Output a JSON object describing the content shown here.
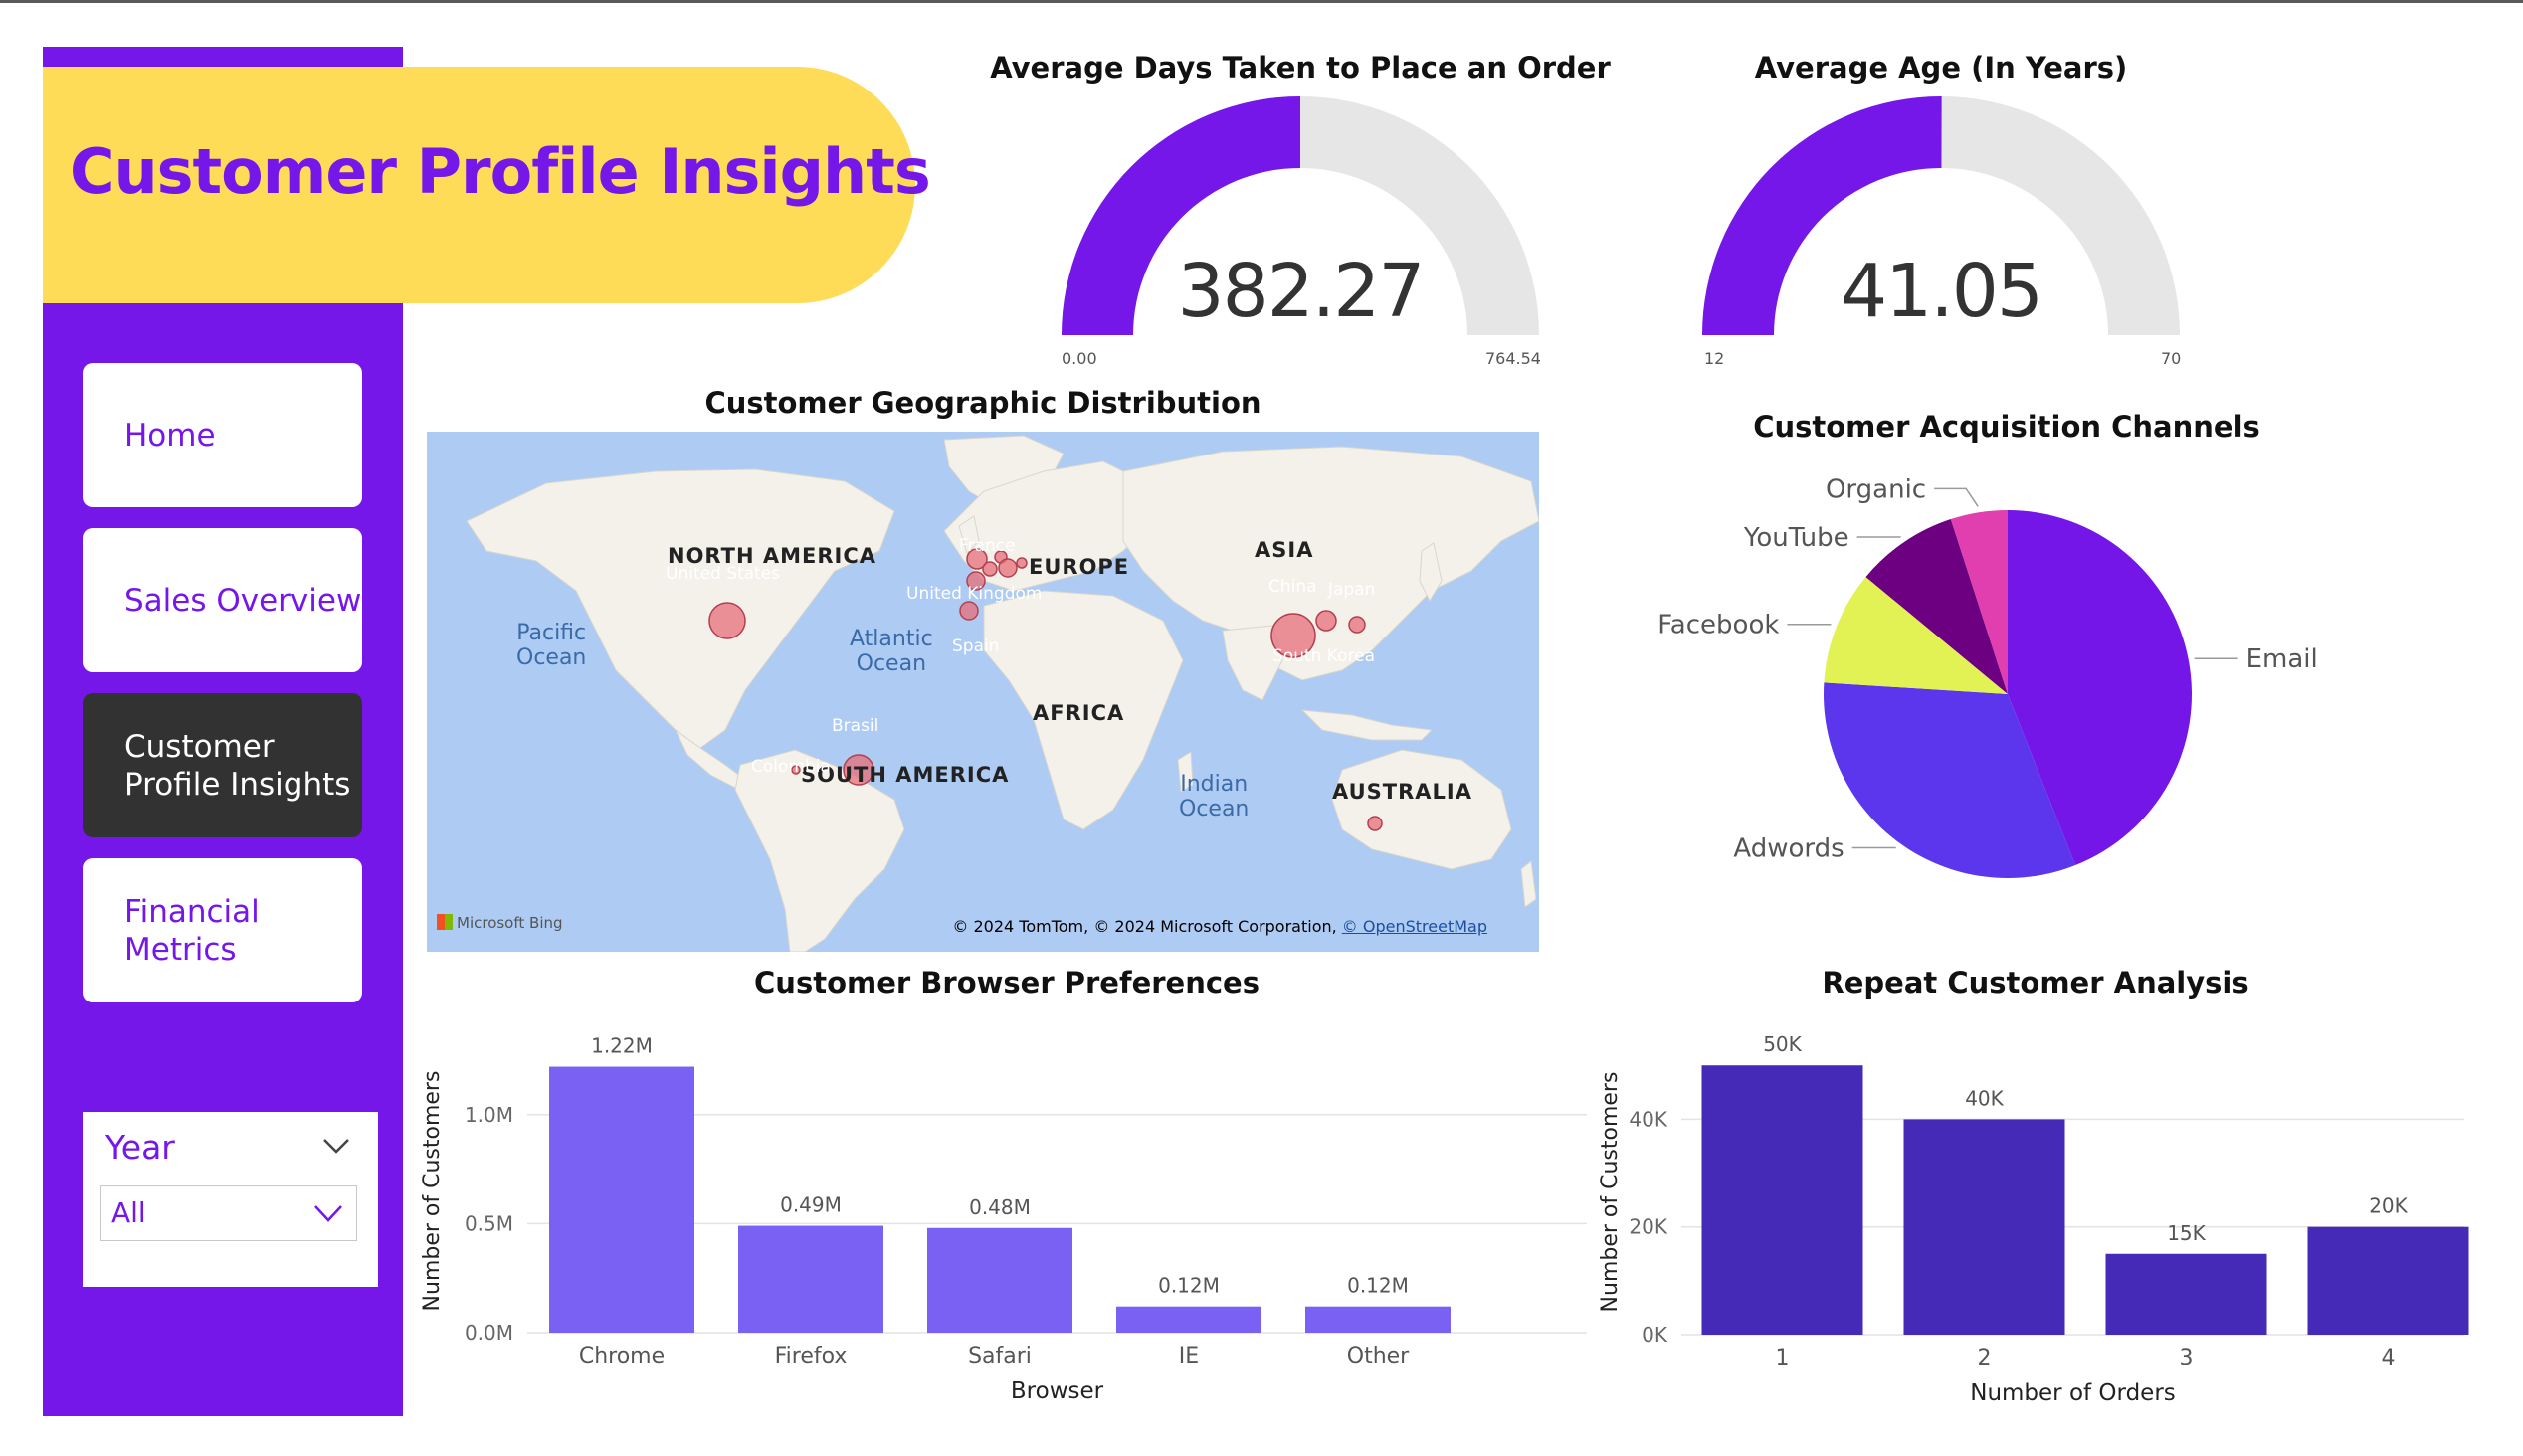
{
  "app": {
    "title": "Customer Profile Insights"
  },
  "nav": [
    {
      "label": "Home",
      "active": false
    },
    {
      "label": "Sales Overview",
      "active": false
    },
    {
      "label": "Customer\nProfile Insights",
      "active": true
    },
    {
      "label": "Financial\nMetrics",
      "active": false
    }
  ],
  "slicer": {
    "label": "Year",
    "selected": "All"
  },
  "gauges": [
    {
      "title": "Average Days Taken to Place an Order",
      "value": 382.27,
      "value_text": "382.27",
      "min": 0,
      "max": 764.54,
      "min_text": "0.00",
      "max_text": "764.54"
    },
    {
      "title": "Average Age (In Years)",
      "value": 41.05,
      "value_text": "41.05",
      "min": 12,
      "max": 70,
      "min_text": "12",
      "max_text": "70"
    }
  ],
  "map": {
    "title": "Customer Geographic Distribution",
    "continents": [
      "NORTH AMERICA",
      "EUROPE",
      "ASIA",
      "AFRICA",
      "SOUTH AMERICA",
      "AUSTRALIA"
    ],
    "oceans": [
      "Pacific\nOcean",
      "Atlantic\nOcean",
      "Indian\nOcean"
    ],
    "places": [
      "United States",
      "France",
      "United Kingdom",
      "Spain",
      "China",
      "Japan",
      "South Korea",
      "Brasil",
      "Colombia"
    ],
    "provider": "Microsoft Bing",
    "attribution": "© 2024 TomTom, © 2024 Microsoft Corporation, ",
    "attribution_link": "© OpenStreetMap"
  },
  "colors": {
    "accent": "#7517e9",
    "banner": "#fedc57",
    "nav_active": "#323232",
    "bar1": "#7b61f3",
    "bar2": "#4529b7",
    "gauge_track": "#e6e6e6"
  },
  "chart_data": [
    {
      "type": "pie",
      "title": "Customer Acquisition Channels",
      "categories": [
        "Email",
        "Adwords",
        "Facebook",
        "YouTube",
        "Organic"
      ],
      "values": [
        44,
        32,
        10,
        9,
        5
      ],
      "colors": [
        "#7516e8",
        "#5c36ec",
        "#e2f255",
        "#6d0080",
        "#e13fb0"
      ]
    },
    {
      "type": "bar",
      "title": "Customer Browser Preferences",
      "categories": [
        "Chrome",
        "Firefox",
        "Safari",
        "IE",
        "Other"
      ],
      "values": [
        1.22,
        0.49,
        0.48,
        0.12,
        0.12
      ],
      "data_labels": [
        "1.22M",
        "0.49M",
        "0.48M",
        "0.12M",
        "0.12M"
      ],
      "yticks": [
        0,
        0.5,
        1.0
      ],
      "ytick_labels": [
        "0.0M",
        "0.5M",
        "1.0M"
      ],
      "ylim": [
        0,
        1.3
      ],
      "xlabel": "Browser",
      "ylabel": "Number of Customers"
    },
    {
      "type": "bar",
      "title": "Repeat Customer Analysis",
      "categories": [
        "1",
        "2",
        "3",
        "4"
      ],
      "values": [
        50,
        40,
        15,
        20
      ],
      "data_labels": [
        "50K",
        "40K",
        "15K",
        "20K"
      ],
      "yticks": [
        0,
        20,
        40
      ],
      "ytick_labels": [
        "0K",
        "20K",
        "40K"
      ],
      "ylim": [
        0,
        53
      ],
      "xlabel": "Number of Orders",
      "ylabel": "Number of Customers"
    }
  ]
}
